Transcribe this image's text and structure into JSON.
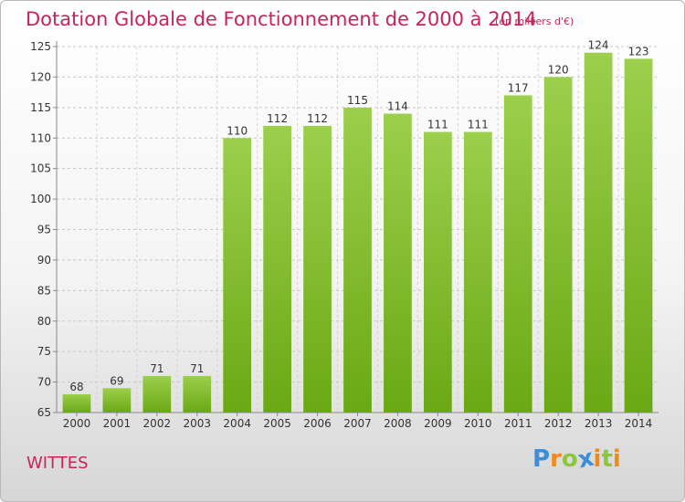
{
  "chart_data": {
    "type": "bar",
    "title": "Dotation Globale de Fonctionnement de 2000 à 2014",
    "subtitle": "(en milliers d'€)",
    "categories": [
      "2000",
      "2001",
      "2002",
      "2003",
      "2004",
      "2005",
      "2006",
      "2007",
      "2008",
      "2009",
      "2010",
      "2011",
      "2012",
      "2013",
      "2014"
    ],
    "values": [
      68,
      69,
      71,
      71,
      110,
      112,
      112,
      115,
      114,
      111,
      111,
      117,
      120,
      124,
      123
    ],
    "ylim": [
      65,
      125
    ],
    "yticks": [
      65,
      70,
      75,
      80,
      85,
      90,
      95,
      100,
      105,
      110,
      115,
      120,
      125
    ],
    "grid": true,
    "colors": {
      "bar_light": "#9ccf4c",
      "bar_dark": "#6aa814",
      "title": "#c8235b"
    }
  },
  "commune": "WITTES",
  "logo": {
    "text": "Proxiti",
    "letters": [
      {
        "ch": "P",
        "color": "#3a8fd6"
      },
      {
        "ch": "r",
        "color": "#f08a1c"
      },
      {
        "ch": "o",
        "color": "#8cc63f"
      },
      {
        "ch": "x",
        "color": "#3a8fd6"
      },
      {
        "ch": "i",
        "color": "#f08a1c"
      },
      {
        "ch": "t",
        "color": "#8cc63f"
      },
      {
        "ch": "i",
        "color": "#f08a1c"
      }
    ]
  }
}
